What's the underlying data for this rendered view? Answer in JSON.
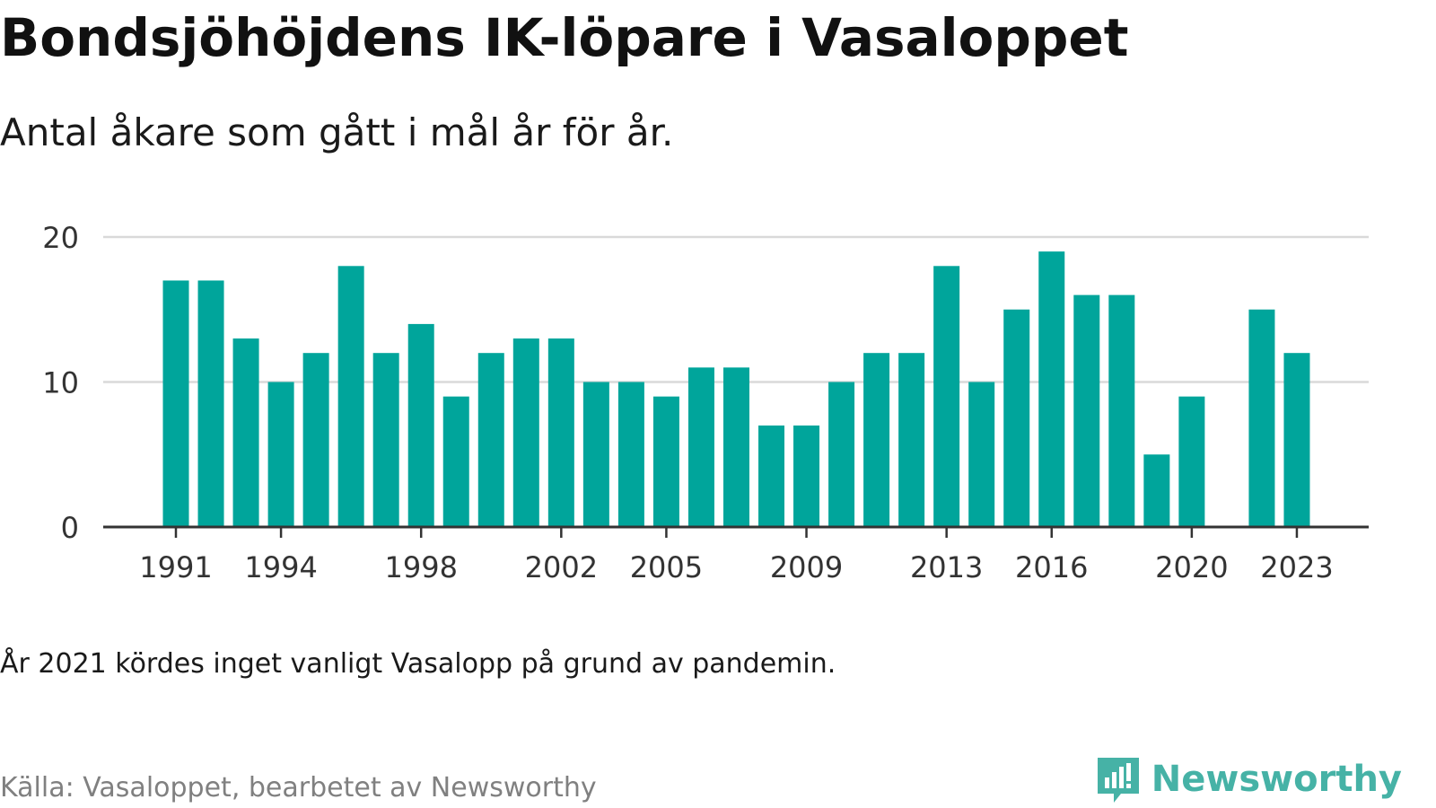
{
  "title": "Bondsjöhöjdens IK-löpare i Vasaloppet",
  "subtitle": "Antal åkare som gått i mål år för år.",
  "note": "År 2021 kördes inget vanligt Vasalopp på grund av pandemin.",
  "source": "Källa: Vasaloppet, bearbetet av Newsworthy",
  "logo": {
    "text": "Newsworthy",
    "icon": "newsworthy-chart-bubble-icon",
    "color": "#46b2a6"
  },
  "chart_data": {
    "type": "bar",
    "title": "",
    "xlabel": "",
    "ylabel": "",
    "x": [
      1991,
      1992,
      1993,
      1994,
      1995,
      1996,
      1997,
      1998,
      1999,
      2000,
      2001,
      2002,
      2003,
      2004,
      2005,
      2006,
      2007,
      2008,
      2009,
      2010,
      2011,
      2012,
      2013,
      2014,
      2015,
      2016,
      2017,
      2018,
      2019,
      2020,
      2021,
      2022,
      2023
    ],
    "values": [
      17,
      17,
      13,
      10,
      12,
      18,
      12,
      14,
      9,
      12,
      13,
      13,
      10,
      10,
      9,
      11,
      11,
      7,
      7,
      10,
      12,
      12,
      18,
      10,
      15,
      19,
      16,
      16,
      5,
      9,
      null,
      15,
      12
    ],
    "x_ticks": [
      "1991",
      "1994",
      "1998",
      "2002",
      "2005",
      "2009",
      "2013",
      "2016",
      "2020",
      "2023"
    ],
    "y_ticks": [
      "0",
      "10",
      "20"
    ],
    "ylim": [
      0,
      20
    ],
    "grid": true,
    "bar_color": "#00a59b",
    "grid_color": "#d9d9d9",
    "axis_color": "#333333"
  }
}
